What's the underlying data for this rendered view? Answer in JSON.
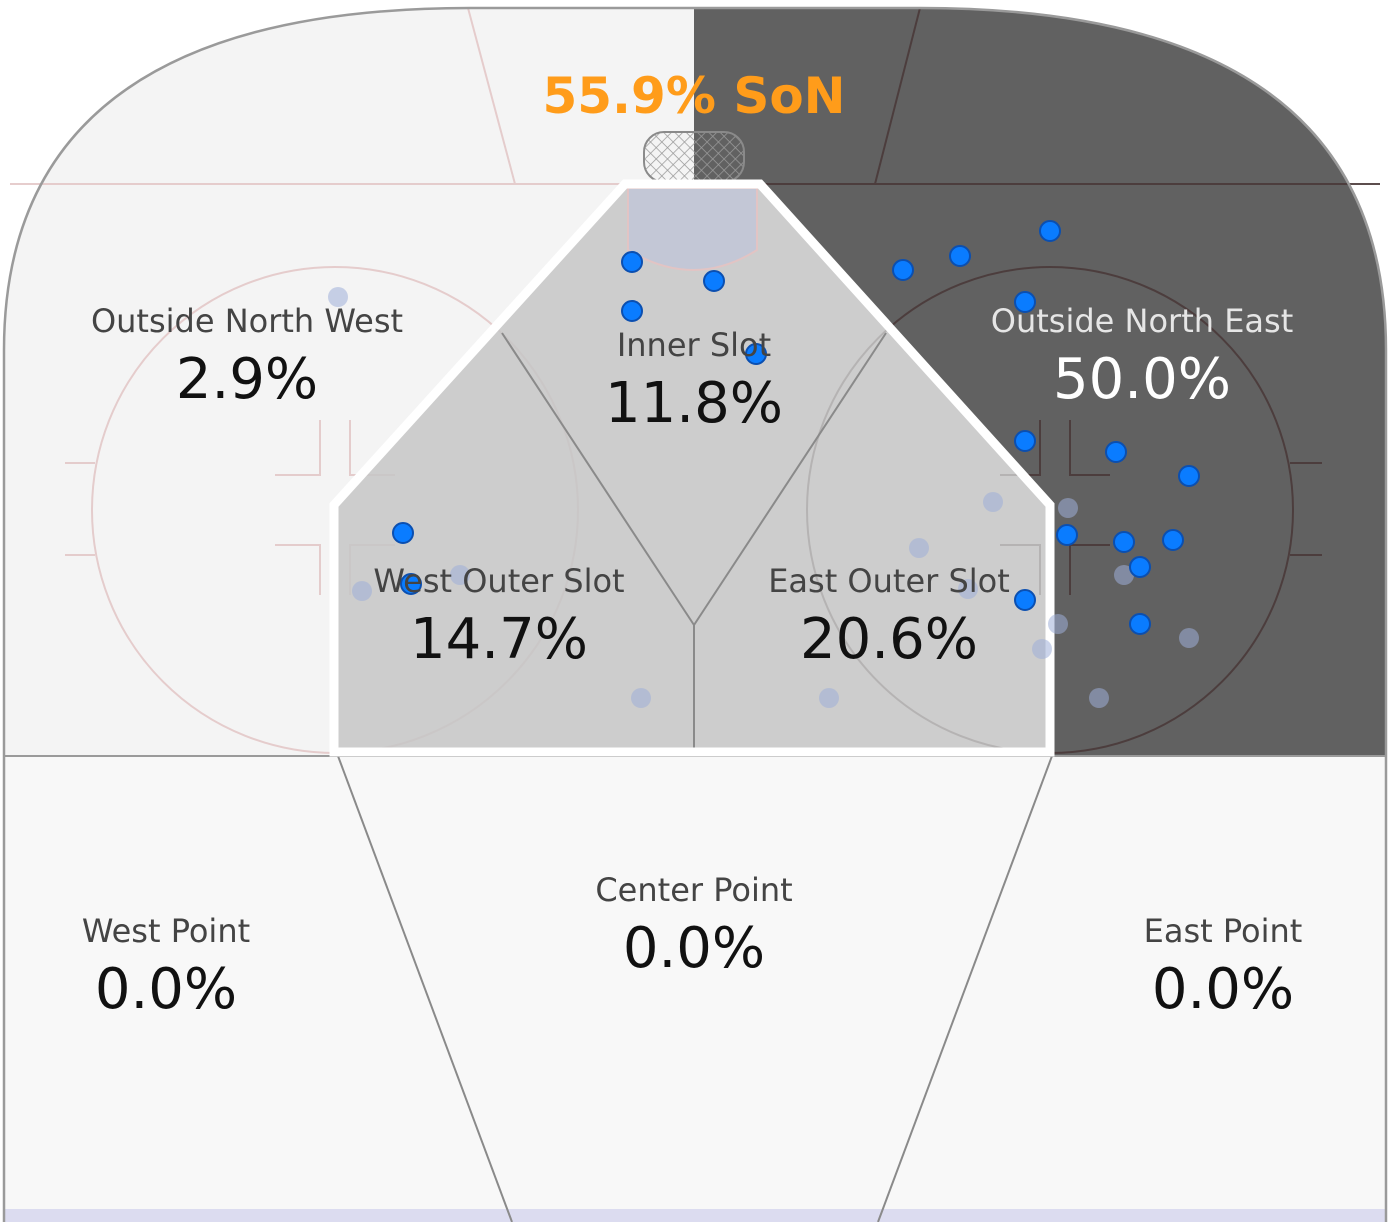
{
  "colors": {
    "background": "#f4f4f4",
    "highlight_zone": "#616161",
    "slot_fill": "#c6c6c6",
    "shot_goal_or_on_net": "#0a7cff",
    "shot_missed": "#9eaed8",
    "headline": "#ff9c1a"
  },
  "chart_data": {
    "type": "heatmap",
    "title": "55.9% SoN",
    "highlighted_zone": "Outside North East",
    "zones": [
      {
        "name": "Outside North West",
        "value": "2.9%"
      },
      {
        "name": "Inner Slot",
        "value": "11.8%"
      },
      {
        "name": "Outside North East",
        "value": "50.0%"
      },
      {
        "name": "West Outer Slot",
        "value": "14.7%"
      },
      {
        "name": "East Outer Slot",
        "value": "20.6%"
      },
      {
        "name": "West Point",
        "value": "0.0%"
      },
      {
        "name": "Center Point",
        "value": "0.0%"
      },
      {
        "name": "East Point",
        "value": "0.0%"
      }
    ]
  }
}
